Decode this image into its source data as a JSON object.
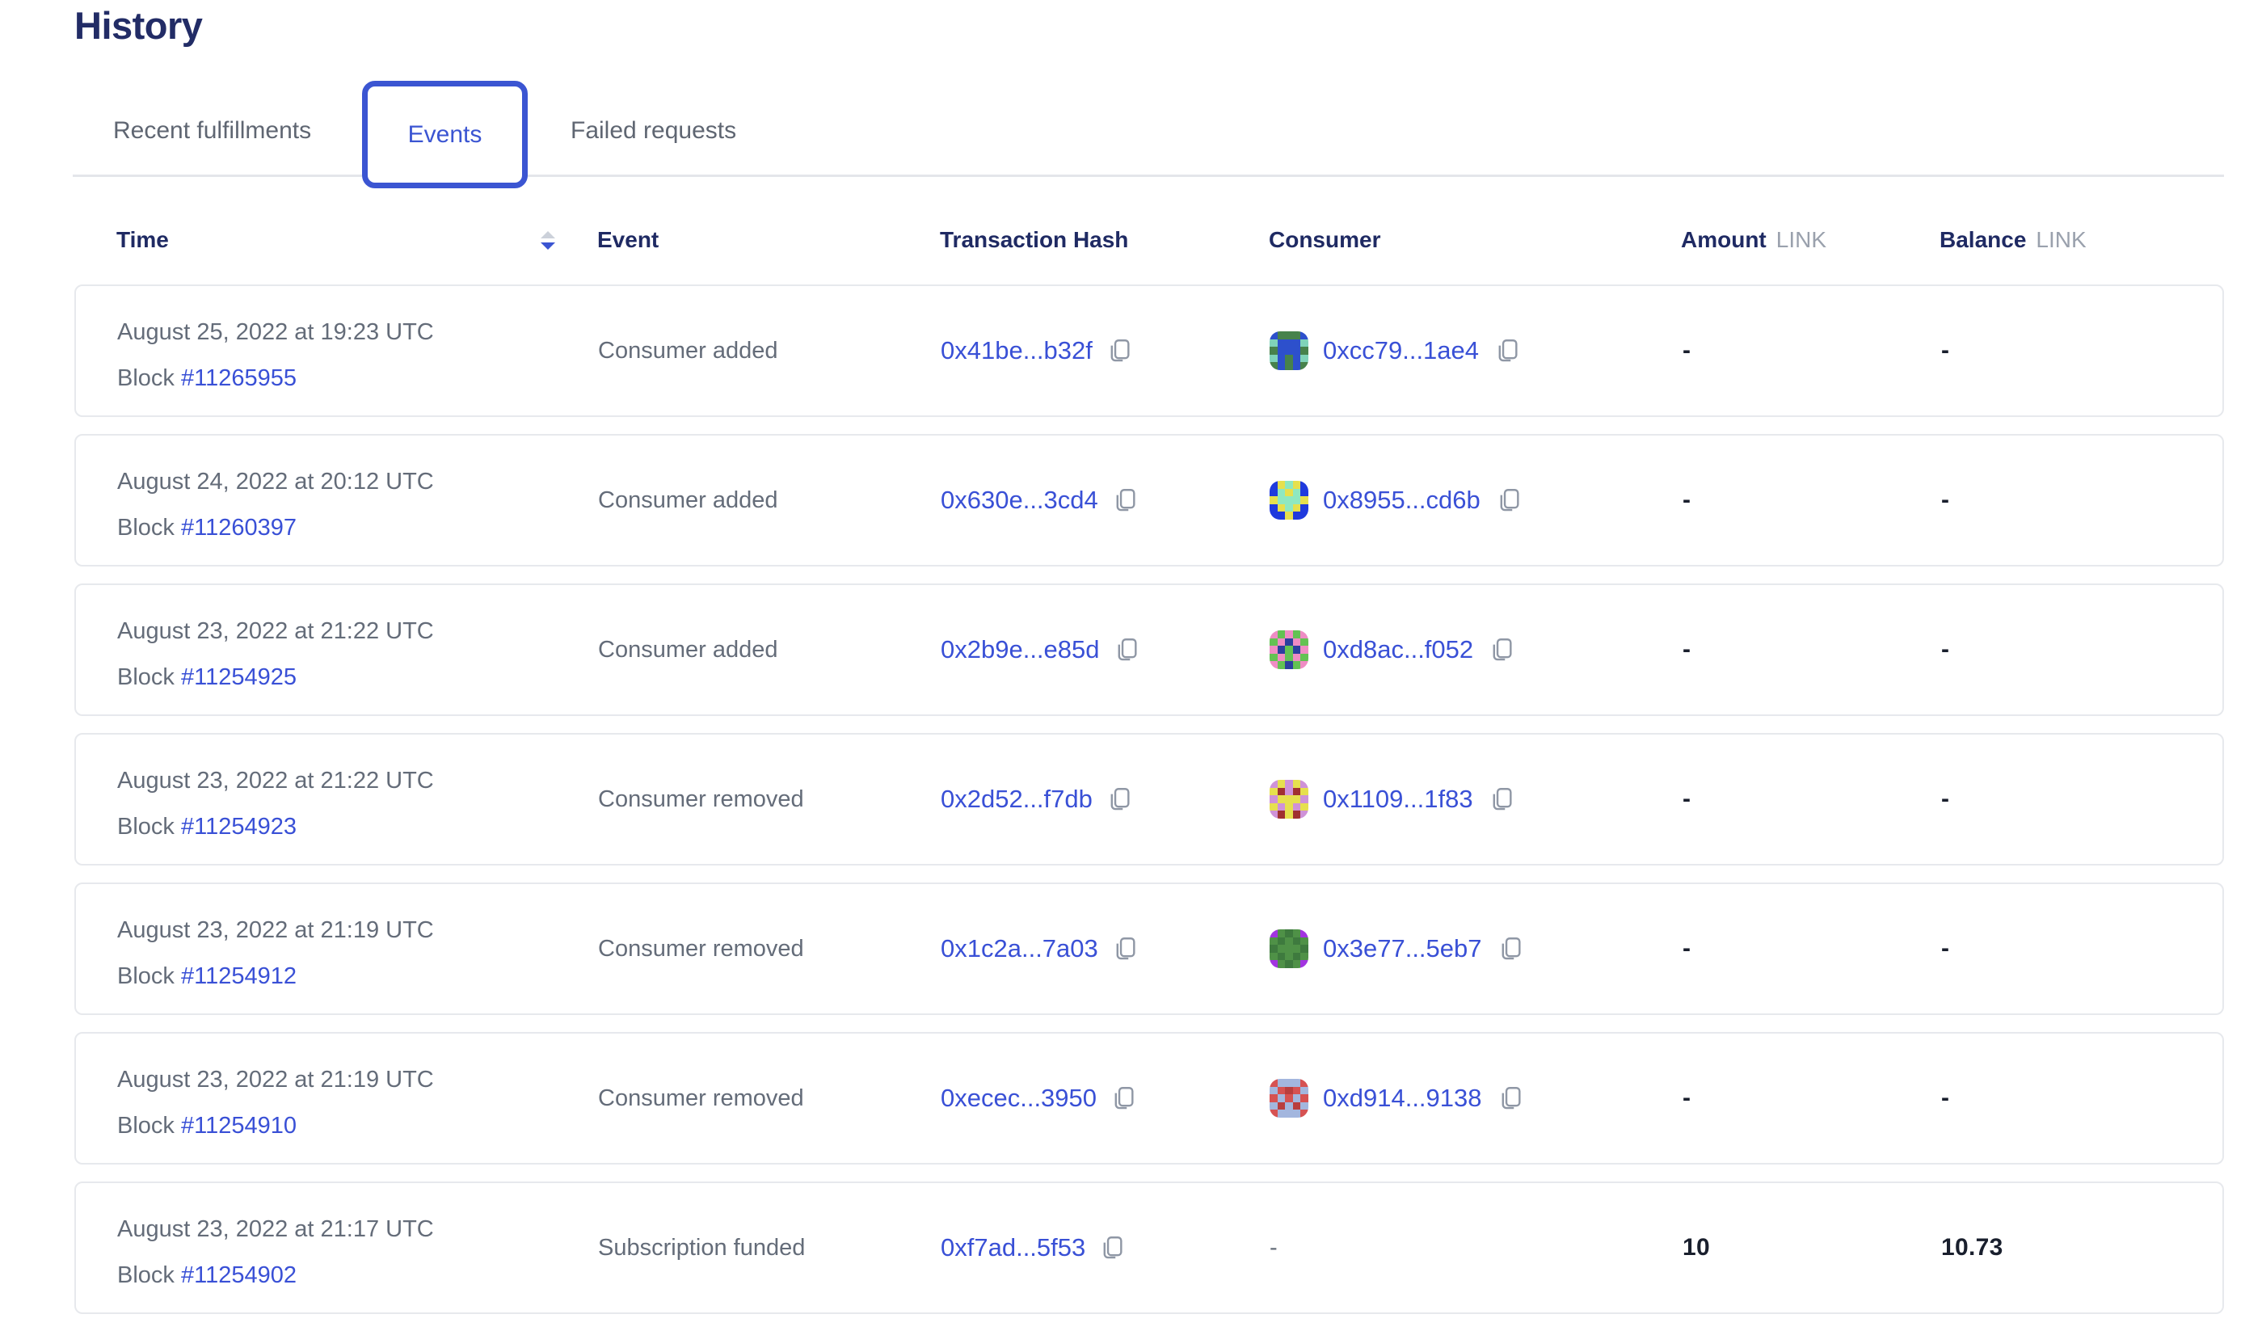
{
  "page": {
    "title": "History"
  },
  "tabs": [
    {
      "label": "Recent fulfillments",
      "active": false
    },
    {
      "label": "Events",
      "active": true
    },
    {
      "label": "Failed requests",
      "active": false
    }
  ],
  "table": {
    "block_label": "Block",
    "header": {
      "time": "Time",
      "event": "Event",
      "transaction_hash": "Transaction Hash",
      "consumer": "Consumer",
      "amount": "Amount",
      "balance": "Balance",
      "unit": "LINK",
      "sort_state": "descending"
    },
    "rows": [
      {
        "date": "August 25, 2022 at 19:23 UTC",
        "block": "#11265955",
        "event": "Consumer added",
        "tx_hash": "0x41be...b32f",
        "consumer": "0xcc79...1ae4",
        "amount": "-",
        "balance": "-",
        "avatar": {
          "colors": [
            "#47824c",
            "#2d50cc",
            "#7fd3b9"
          ],
          "pixels": [
            [
              1,
              0,
              0,
              0,
              1
            ],
            [
              2,
              1,
              1,
              1,
              2
            ],
            [
              0,
              1,
              1,
              1,
              0
            ],
            [
              2,
              1,
              0,
              1,
              2
            ],
            [
              0,
              1,
              0,
              1,
              0
            ]
          ]
        }
      },
      {
        "date": "August 24, 2022 at 20:12 UTC",
        "block": "#11260397",
        "event": "Consumer added",
        "tx_hash": "0x630e...3cd4",
        "consumer": "0x8955...cd6b",
        "amount": "-",
        "balance": "-",
        "avatar": {
          "colors": [
            "#1f3add",
            "#e6e04e",
            "#8fe8c0"
          ],
          "pixels": [
            [
              0,
              1,
              2,
              1,
              0
            ],
            [
              0,
              2,
              1,
              2,
              0
            ],
            [
              1,
              2,
              2,
              2,
              1
            ],
            [
              0,
              1,
              2,
              1,
              0
            ],
            [
              0,
              0,
              1,
              0,
              0
            ]
          ]
        }
      },
      {
        "date": "August 23, 2022 at 21:22 UTC",
        "block": "#11254925",
        "event": "Consumer added",
        "tx_hash": "0x2b9e...e85d",
        "consumer": "0xd8ac...f052",
        "amount": "-",
        "balance": "-",
        "avatar": {
          "colors": [
            "#63c253",
            "#ef8cc4",
            "#2b3f9e"
          ],
          "pixels": [
            [
              1,
              0,
              1,
              0,
              1
            ],
            [
              0,
              1,
              2,
              1,
              0
            ],
            [
              1,
              2,
              0,
              2,
              1
            ],
            [
              0,
              1,
              0,
              1,
              0
            ],
            [
              1,
              0,
              2,
              0,
              1
            ]
          ]
        }
      },
      {
        "date": "August 23, 2022 at 21:22 UTC",
        "block": "#11254923",
        "event": "Consumer removed",
        "tx_hash": "0x2d52...f7db",
        "consumer": "0x1109...1f83",
        "amount": "-",
        "balance": "-",
        "avatar": {
          "colors": [
            "#cf92d8",
            "#e6e04e",
            "#a03030"
          ],
          "pixels": [
            [
              0,
              1,
              0,
              1,
              0
            ],
            [
              1,
              2,
              0,
              2,
              1
            ],
            [
              0,
              1,
              1,
              1,
              0
            ],
            [
              1,
              0,
              1,
              0,
              1
            ],
            [
              0,
              2,
              1,
              2,
              0
            ]
          ]
        }
      },
      {
        "date": "August 23, 2022 at 21:19 UTC",
        "block": "#11254912",
        "event": "Consumer removed",
        "tx_hash": "0x1c2a...7a03",
        "consumer": "0x3e77...5eb7",
        "amount": "-",
        "balance": "-",
        "avatar": {
          "colors": [
            "#4f9147",
            "#a234e0",
            "#3e7a3e"
          ],
          "pixels": [
            [
              1,
              0,
              2,
              0,
              1
            ],
            [
              0,
              2,
              0,
              2,
              0
            ],
            [
              2,
              0,
              0,
              0,
              2
            ],
            [
              0,
              2,
              0,
              2,
              0
            ],
            [
              1,
              0,
              2,
              0,
              1
            ]
          ]
        }
      },
      {
        "date": "August 23, 2022 at 21:19 UTC",
        "block": "#11254910",
        "event": "Consumer removed",
        "tx_hash": "0xecec...3950",
        "consumer": "0xd914...9138",
        "amount": "-",
        "balance": "-",
        "avatar": {
          "colors": [
            "#d65252",
            "#a3b6de",
            "#b93e3e"
          ],
          "pixels": [
            [
              0,
              1,
              1,
              1,
              0
            ],
            [
              1,
              0,
              2,
              0,
              1
            ],
            [
              0,
              1,
              0,
              1,
              0
            ],
            [
              1,
              2,
              1,
              2,
              1
            ],
            [
              0,
              1,
              1,
              1,
              0
            ]
          ]
        }
      },
      {
        "date": "August 23, 2022 at 21:17 UTC",
        "block": "#11254902",
        "event": "Subscription funded",
        "tx_hash": "0xf7ad...5f53",
        "consumer": "-",
        "amount": "10",
        "balance": "10.73",
        "avatar": null
      }
    ]
  },
  "colors": {
    "accent_blue": "#3b55d2",
    "link_blue": "#3950d6",
    "heading_navy": "#222c66",
    "header_navy": "#1f2a63",
    "text_gray": "#646c79",
    "muted_gray": "#9aa1ad",
    "border_gray": "#e7e9ed",
    "value_dark": "#191f2d"
  }
}
